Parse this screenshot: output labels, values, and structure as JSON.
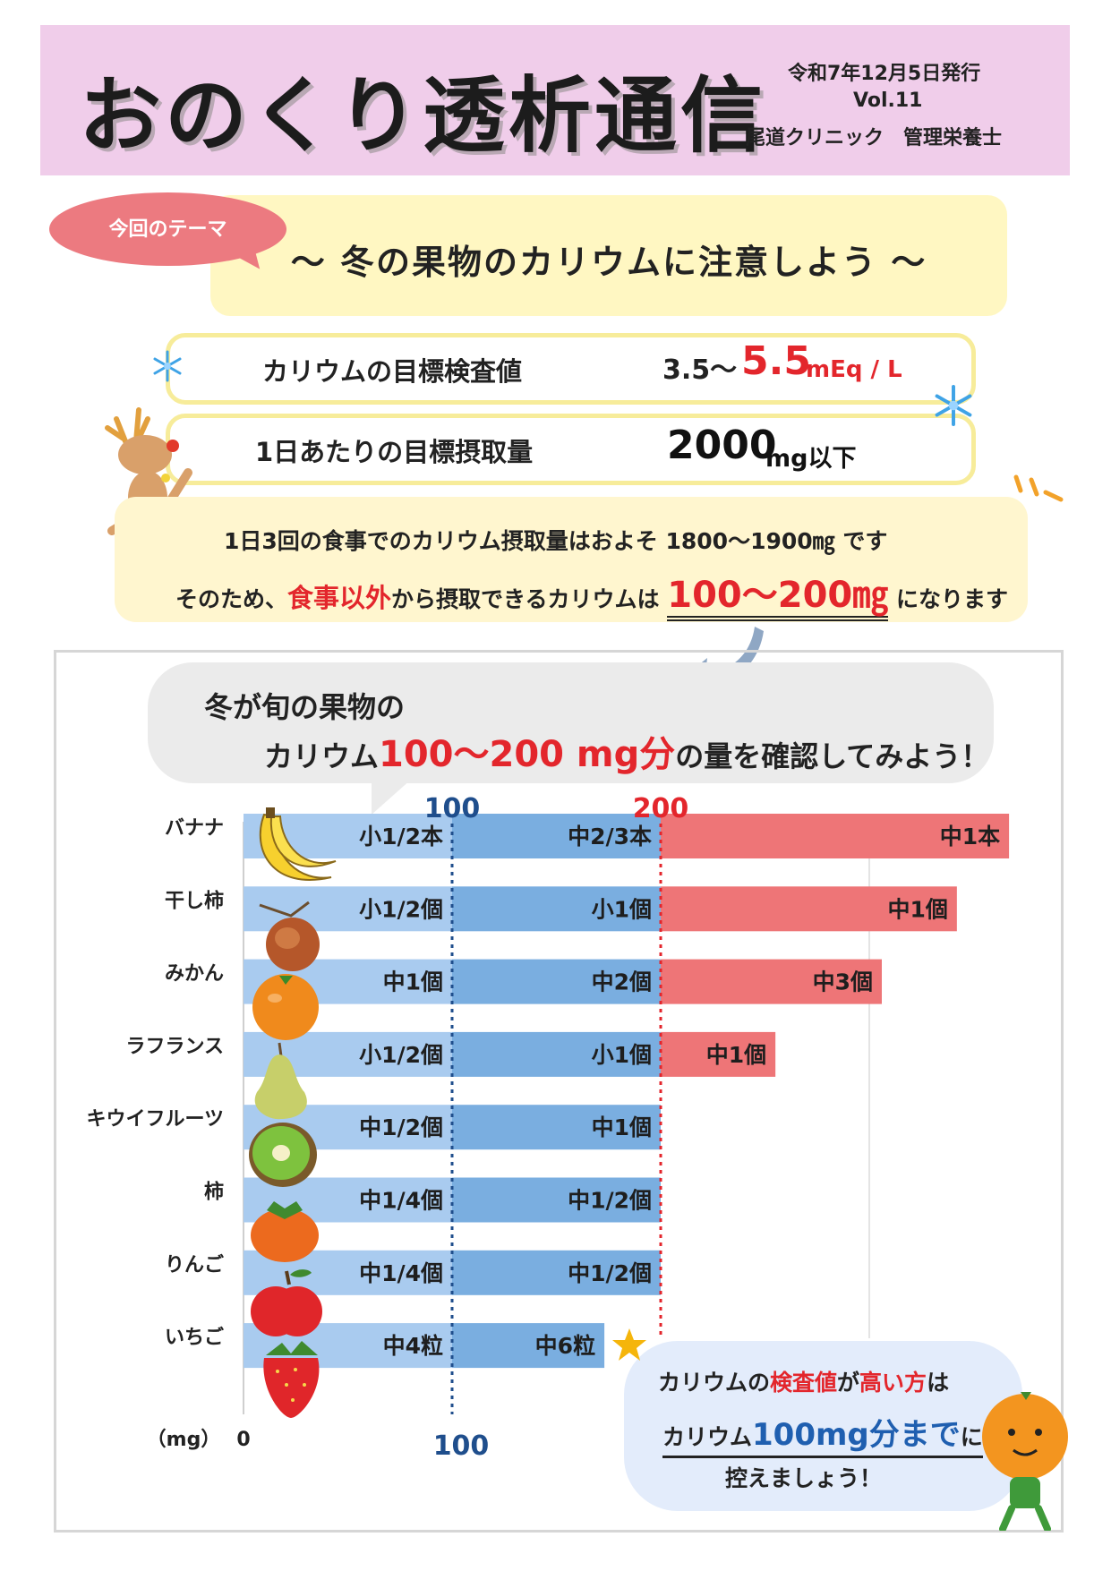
{
  "header": {
    "title": "おのくり透析通信",
    "issue_date": "令和7年12月5日発行",
    "volume": "Vol.11",
    "author": "尾道クリニック　管理栄養士"
  },
  "theme": {
    "label": "今回のテーマ",
    "text": "～ 冬の果物のカリウムに注意しよう ～"
  },
  "targets": [
    {
      "label": "カリウムの目標検査値",
      "value_prefix": "3.5～",
      "value_main": "5.5",
      "value_unit": "mEq / L"
    },
    {
      "label": "1日あたりの目標摂取量",
      "value_main": "2000",
      "value_unit": "mg以下"
    }
  ],
  "info": {
    "line1": "1日3回の食事でのカリウム摂取量はおよそ 1800～1900㎎ です",
    "line2_a": "そのため、",
    "line2_b": "食事以外",
    "line2_c": "から摂取できるカリウムは",
    "line2_d": "100～200㎎",
    "line2_e": "になります"
  },
  "callout": {
    "line1": "冬が旬の果物の",
    "line2_a": "カリウム",
    "line2_b": "100～200 mg分",
    "line2_c": "の量を確認してみよう！"
  },
  "note": {
    "line1_a": "カリウムの",
    "line1_b": "検査値",
    "line1_c": "が",
    "line1_d": "高い方",
    "line1_e": "は",
    "line2_a": "カリウム",
    "line2_b": "100mg分まで",
    "line2_c": "に",
    "line3": "控えましょう！"
  },
  "colors": {
    "header_bg": "#f0cdea",
    "theme_bg": "#fff7c2",
    "accent_red": "#e3262c",
    "bar_light_blue": "#a9cbef",
    "bar_blue": "#7aaee0",
    "bar_red": "#ee7577",
    "line_100": "#1f4e8c",
    "line_200": "#e3262c"
  },
  "icons": [
    "snowflake-icon",
    "reindeer-icon",
    "banana-icon",
    "dried-persimmon-icon",
    "mikan-icon",
    "la-france-icon",
    "kiwi-icon",
    "persimmon-icon",
    "apple-icon",
    "strawberry-icon",
    "star-icon",
    "mikan-character-icon",
    "arrow-icon"
  ],
  "chart_data": {
    "type": "bar",
    "orientation": "horizontal",
    "unit_label": "（mg）",
    "x_ticks": [
      "0",
      "100"
    ],
    "reference_lines": [
      {
        "value": 100,
        "label": "100"
      },
      {
        "value": 200,
        "label": "200"
      }
    ],
    "xlim": [
      0,
      400
    ],
    "categories": [
      "バナナ",
      "干し柿",
      "みかん",
      "ラフランス",
      "キウイフルーツ",
      "柿",
      "りんご",
      "いちご"
    ],
    "rows": [
      {
        "name": "バナナ",
        "total": 367,
        "labels": [
          "小1/2本",
          "中2/3本",
          "中1本"
        ]
      },
      {
        "name": "干し柿",
        "total": 342,
        "labels": [
          "小1/2個",
          "小1個",
          "中1個"
        ]
      },
      {
        "name": "みかん",
        "total": 306,
        "labels": [
          "中1個",
          "中2個",
          "中3個"
        ]
      },
      {
        "name": "ラフランス",
        "total": 255,
        "labels": [
          "小1/2個",
          "小1個",
          "中1個"
        ]
      },
      {
        "name": "キウイフルーツ",
        "total": 200,
        "labels": [
          "中1/2個",
          "中1個"
        ]
      },
      {
        "name": "柿",
        "total": 200,
        "labels": [
          "中1/4個",
          "中1/2個"
        ]
      },
      {
        "name": "りんご",
        "total": 200,
        "labels": [
          "中1/4個",
          "中1/2個"
        ]
      },
      {
        "name": "いちご",
        "total": 173,
        "labels": [
          "中4粒",
          "中6粒"
        ]
      }
    ]
  }
}
